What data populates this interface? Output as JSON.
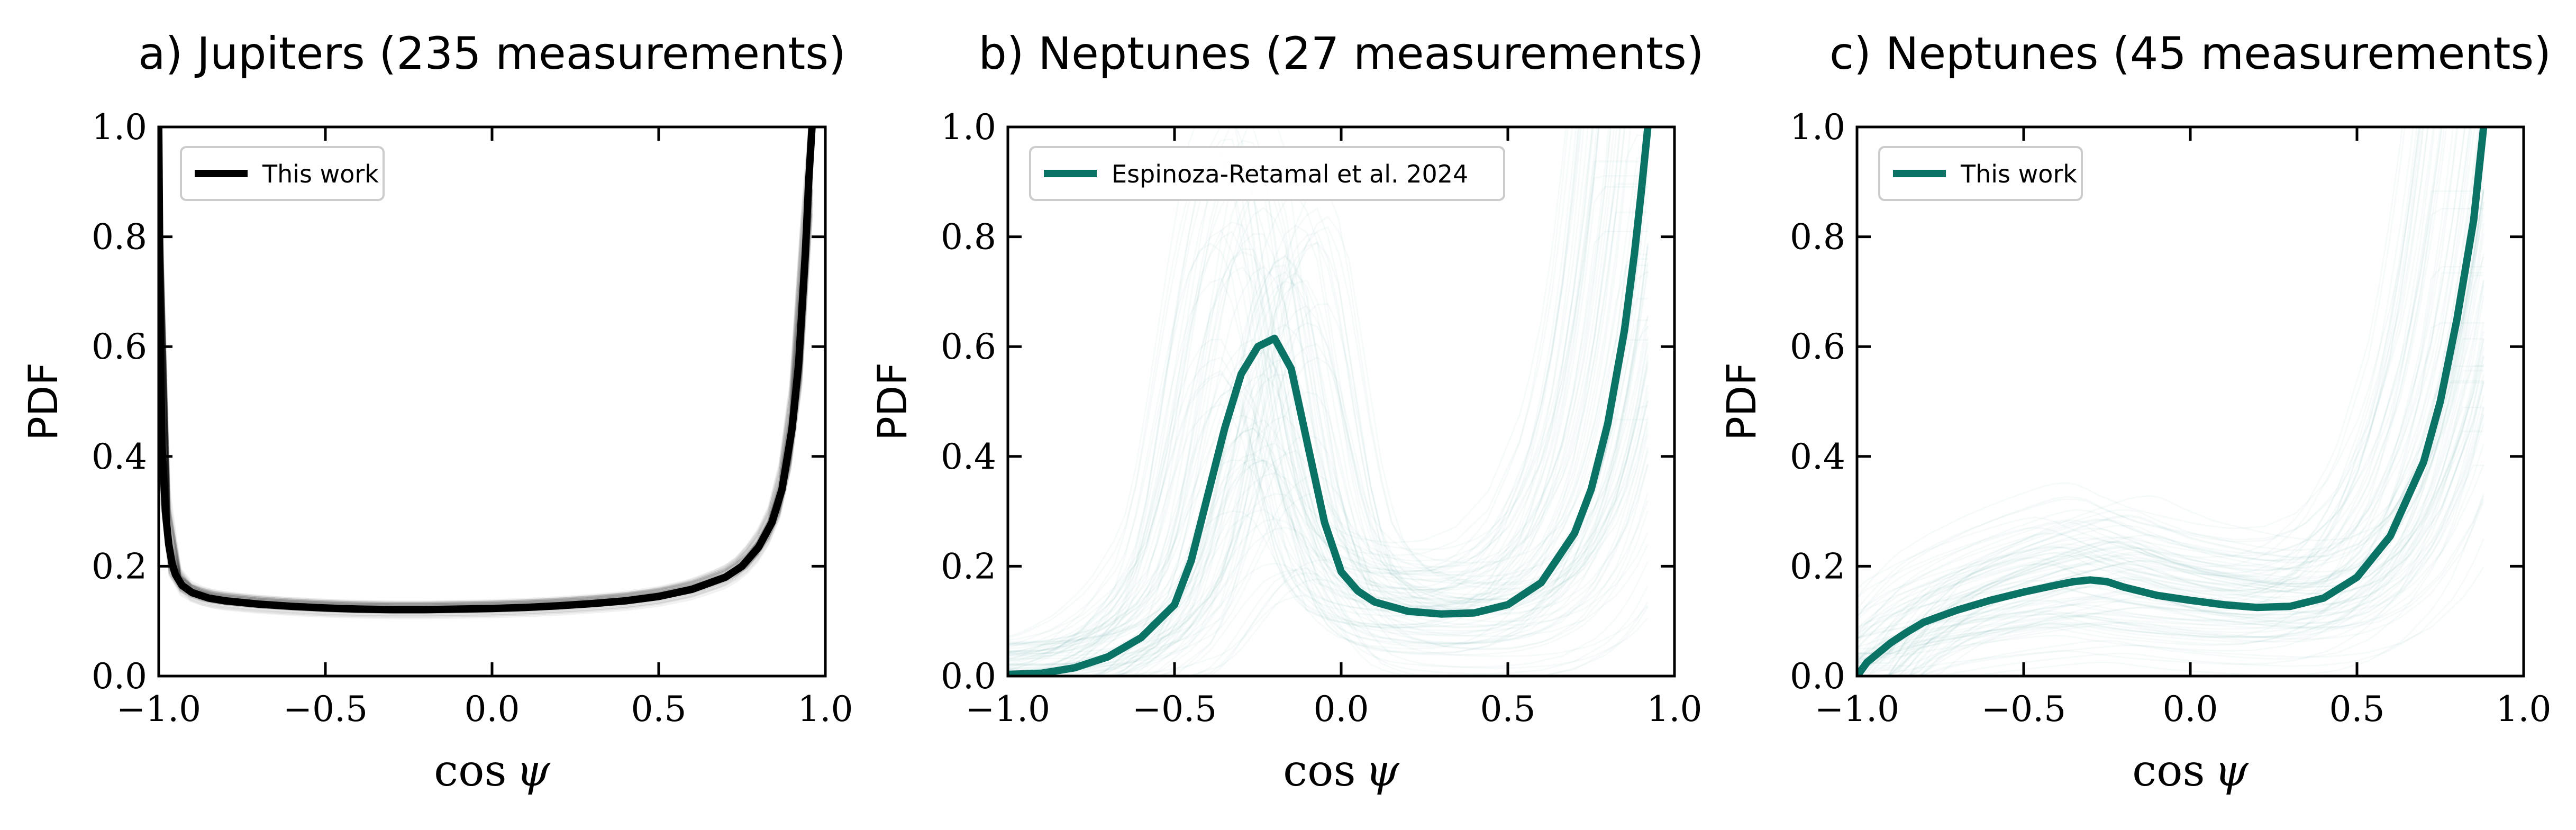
{
  "chart_data": [
    {
      "type": "line",
      "title": "a) Jupiters (235 measurements)",
      "xlabel_main": "cos",
      "xlabel_symbol": "ψ",
      "ylabel": "PDF",
      "xlim": [
        -1.0,
        1.0
      ],
      "ylim": [
        0.0,
        1.0
      ],
      "xticks": [
        -1.0,
        -0.5,
        0.0,
        0.5,
        1.0
      ],
      "xtick_labels": [
        "−1.0",
        "−0.5",
        "0.0",
        "0.5",
        "1.0"
      ],
      "yticks": [
        0.0,
        0.2,
        0.4,
        0.6,
        0.8,
        1.0
      ],
      "ytick_labels": [
        "0.0",
        "0.2",
        "0.4",
        "0.6",
        "0.8",
        "1.0"
      ],
      "color": "#000000",
      "legend": {
        "label": "This work",
        "placement": "upper-left"
      },
      "series": [
        {
          "name": "This work",
          "x": [
            -1.0,
            -0.995,
            -0.99,
            -0.98,
            -0.97,
            -0.96,
            -0.95,
            -0.93,
            -0.9,
            -0.85,
            -0.8,
            -0.7,
            -0.6,
            -0.5,
            -0.4,
            -0.3,
            -0.2,
            -0.1,
            0.0,
            0.1,
            0.2,
            0.3,
            0.4,
            0.5,
            0.6,
            0.7,
            0.75,
            0.8,
            0.84,
            0.87,
            0.9,
            0.92,
            0.94,
            0.95,
            0.96
          ],
          "y": [
            1.0,
            0.6,
            0.42,
            0.3,
            0.24,
            0.205,
            0.185,
            0.165,
            0.152,
            0.142,
            0.137,
            0.131,
            0.127,
            0.124,
            0.122,
            0.121,
            0.121,
            0.122,
            0.123,
            0.125,
            0.128,
            0.132,
            0.137,
            0.145,
            0.158,
            0.18,
            0.2,
            0.235,
            0.28,
            0.34,
            0.45,
            0.57,
            0.77,
            0.9,
            1.0
          ]
        }
      ],
      "samples_spread": "bundle of thin translucent posterior draws closely following the main curve (visible spread near x ≈ -1 and 0.6–1.0)"
    },
    {
      "type": "line",
      "title": "b) Neptunes (27 measurements)",
      "xlabel_main": "cos",
      "xlabel_symbol": "ψ",
      "ylabel": "PDF",
      "xlim": [
        -1.0,
        1.0
      ],
      "ylim": [
        0.0,
        1.0
      ],
      "xticks": [
        -1.0,
        -0.5,
        0.0,
        0.5,
        1.0
      ],
      "xtick_labels": [
        "−1.0",
        "−0.5",
        "0.0",
        "0.5",
        "1.0"
      ],
      "yticks": [
        0.0,
        0.2,
        0.4,
        0.6,
        0.8,
        1.0
      ],
      "ytick_labels": [
        "0.0",
        "0.2",
        "0.4",
        "0.6",
        "0.8",
        "1.0"
      ],
      "color": "#0a7366",
      "legend": {
        "label": "Espinoza-Retamal et al. 2024",
        "placement": "upper-left"
      },
      "series": [
        {
          "name": "Espinoza-Retamal et al. 2024",
          "x": [
            -1.0,
            -0.9,
            -0.8,
            -0.7,
            -0.6,
            -0.5,
            -0.45,
            -0.4,
            -0.35,
            -0.3,
            -0.25,
            -0.2,
            -0.15,
            -0.1,
            -0.05,
            0.0,
            0.05,
            0.1,
            0.2,
            0.3,
            0.4,
            0.5,
            0.6,
            0.7,
            0.75,
            0.8,
            0.85,
            0.88,
            0.9,
            0.92
          ],
          "y": [
            0.003,
            0.005,
            0.015,
            0.035,
            0.07,
            0.13,
            0.21,
            0.33,
            0.45,
            0.55,
            0.6,
            0.615,
            0.56,
            0.42,
            0.28,
            0.19,
            0.155,
            0.135,
            0.118,
            0.113,
            0.115,
            0.13,
            0.17,
            0.26,
            0.34,
            0.46,
            0.63,
            0.77,
            0.88,
            1.0
          ]
        }
      ],
      "samples_spread": "many faint teal posterior draws spanning the full panel, concentrated near x ≈ -0.2 and x > 0.8"
    },
    {
      "type": "line",
      "title": "c) Neptunes (45 measurements)",
      "xlabel_main": "cos",
      "xlabel_symbol": "ψ",
      "ylabel": "PDF",
      "xlim": [
        -1.0,
        1.0
      ],
      "ylim": [
        0.0,
        1.0
      ],
      "xticks": [
        -1.0,
        -0.5,
        0.0,
        0.5,
        1.0
      ],
      "xtick_labels": [
        "−1.0",
        "−0.5",
        "0.0",
        "0.5",
        "1.0"
      ],
      "yticks": [
        0.0,
        0.2,
        0.4,
        0.6,
        0.8,
        1.0
      ],
      "ytick_labels": [
        "0.0",
        "0.2",
        "0.4",
        "0.6",
        "0.8",
        "1.0"
      ],
      "color": "#0a7366",
      "legend": {
        "label": "This work",
        "placement": "upper-left"
      },
      "series": [
        {
          "name": "This work",
          "x": [
            -1.0,
            -0.97,
            -0.93,
            -0.9,
            -0.85,
            -0.8,
            -0.7,
            -0.6,
            -0.5,
            -0.4,
            -0.35,
            -0.3,
            -0.25,
            -0.2,
            -0.1,
            0.0,
            0.1,
            0.2,
            0.3,
            0.4,
            0.5,
            0.6,
            0.7,
            0.75,
            0.8,
            0.85,
            0.88
          ],
          "y": [
            0.0,
            0.025,
            0.045,
            0.06,
            0.08,
            0.098,
            0.12,
            0.138,
            0.153,
            0.166,
            0.172,
            0.175,
            0.172,
            0.162,
            0.147,
            0.138,
            0.13,
            0.125,
            0.127,
            0.142,
            0.18,
            0.255,
            0.39,
            0.5,
            0.65,
            0.83,
            1.0
          ]
        }
      ],
      "samples_spread": "many faint teal posterior draws, broad haze around y ≈ 0.1–0.3 and steep rise for x > 0.7"
    }
  ]
}
